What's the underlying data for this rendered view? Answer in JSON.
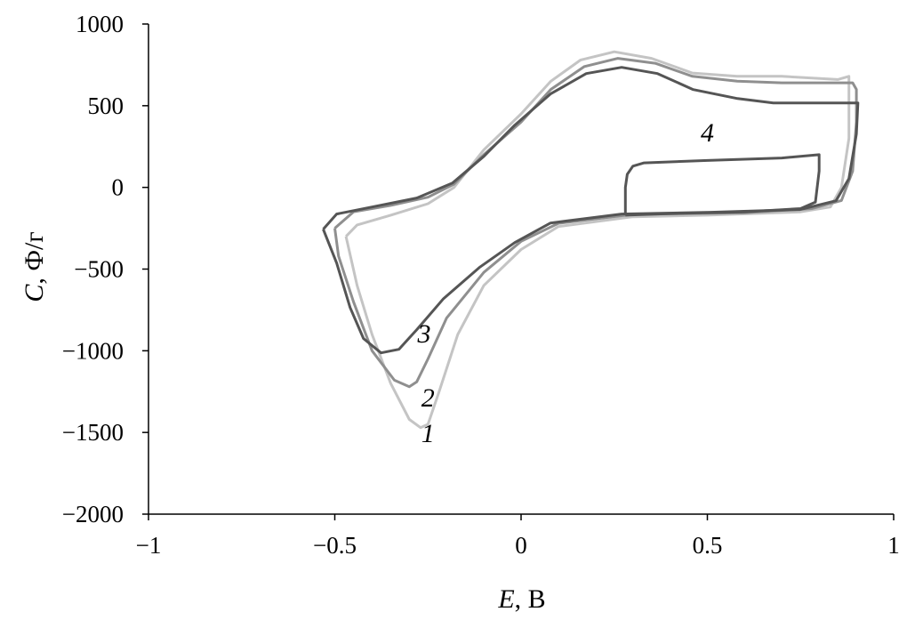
{
  "chart_data": {
    "type": "line",
    "title": "",
    "xlabel": {
      "var": "E",
      "unit": ", В"
    },
    "ylabel": {
      "var": "C",
      "unit": ", Ф/г"
    },
    "xlim": [
      -1,
      1
    ],
    "ylim": [
      -2000,
      1000
    ],
    "xticks": [
      -1,
      -0.5,
      0,
      0.5,
      1
    ],
    "xtick_labels": [
      "−1",
      "−0.5",
      "0",
      "0.5",
      "1"
    ],
    "yticks": [
      1000,
      500,
      0,
      -500,
      -1000,
      -1500,
      -2000
    ],
    "ytick_labels": [
      "1000",
      "500",
      "0",
      "−500",
      "−1000",
      "−1500",
      "−2000"
    ],
    "grid": false,
    "legend": "none",
    "series": [
      {
        "label": "1",
        "color": "#c4c4c4",
        "label_pos": [
          -0.25,
          -1560
        ],
        "x": [
          -0.47,
          -0.44,
          -0.35,
          -0.25,
          -0.18,
          -0.1,
          0,
          0.08,
          0.16,
          0.25,
          0.35,
          0.46,
          0.58,
          0.7,
          0.85,
          0.88,
          0.88,
          0.88,
          0.86,
          0.83,
          0.75,
          0.5,
          0.3,
          0.1,
          0,
          -0.1,
          -0.17,
          -0.22,
          -0.25,
          -0.27,
          -0.3,
          -0.35,
          -0.4,
          -0.44,
          -0.47
        ],
        "y": [
          -300,
          -230,
          -170,
          -100,
          0,
          230,
          450,
          650,
          780,
          830,
          790,
          700,
          680,
          680,
          660,
          680,
          600,
          300,
          0,
          -120,
          -150,
          -170,
          -180,
          -240,
          -380,
          -600,
          -900,
          -1250,
          -1450,
          -1470,
          -1420,
          -1200,
          -900,
          -600,
          -300
        ]
      },
      {
        "label": "2",
        "color": "#8f8f8f",
        "label_pos": [
          -0.25,
          -1340
        ],
        "x": [
          -0.5,
          -0.45,
          -0.35,
          -0.25,
          -0.18,
          -0.1,
          0,
          0.08,
          0.17,
          0.26,
          0.36,
          0.46,
          0.58,
          0.7,
          0.89,
          0.9,
          0.9,
          0.89,
          0.86,
          0.78,
          0.6,
          0.3,
          0.1,
          0,
          -0.1,
          -0.2,
          -0.25,
          -0.28,
          -0.3,
          -0.34,
          -0.4,
          -0.45,
          -0.49,
          -0.5
        ],
        "y": [
          -250,
          -150,
          -110,
          -60,
          20,
          200,
          400,
          600,
          740,
          790,
          760,
          680,
          650,
          640,
          640,
          600,
          400,
          100,
          -80,
          -130,
          -155,
          -165,
          -220,
          -330,
          -520,
          -800,
          -1050,
          -1190,
          -1220,
          -1180,
          -1000,
          -700,
          -420,
          -250
        ]
      },
      {
        "label": "3",
        "color": "#555555",
        "label_pos": [
          -0.26,
          -950
        ],
        "x": [
          -0.531,
          -0.495,
          -0.4,
          -0.28,
          -0.184,
          -0.1,
          -0.017,
          0.079,
          0.175,
          0.27,
          0.366,
          0.462,
          0.581,
          0.677,
          0.904,
          0.9,
          0.88,
          0.845,
          0.749,
          0.51,
          0.27,
          0.079,
          -0.017,
          -0.112,
          -0.208,
          -0.28,
          -0.328,
          -0.376,
          -0.423,
          -0.459,
          -0.495,
          -0.531
        ],
        "y": [
          -256,
          -163,
          -120,
          -65,
          27,
          190,
          381,
          572,
          697,
          735,
          697,
          599,
          544,
          517,
          517,
          327,
          54,
          -82,
          -136,
          -152,
          -163,
          -218,
          -338,
          -490,
          -681,
          -871,
          -991,
          -1013,
          -925,
          -735,
          -463,
          -256
        ]
      },
      {
        "label": "4",
        "color": "#555555",
        "label_pos": [
          0.5,
          280
        ],
        "x": [
          0.28,
          0.28,
          0.285,
          0.3,
          0.33,
          0.5,
          0.7,
          0.8,
          0.8,
          0.79,
          0.75,
          0.6,
          0.4,
          0.28
        ],
        "y": [
          -170,
          0,
          80,
          130,
          150,
          165,
          180,
          200,
          100,
          -90,
          -130,
          -150,
          -160,
          -170
        ]
      }
    ]
  }
}
